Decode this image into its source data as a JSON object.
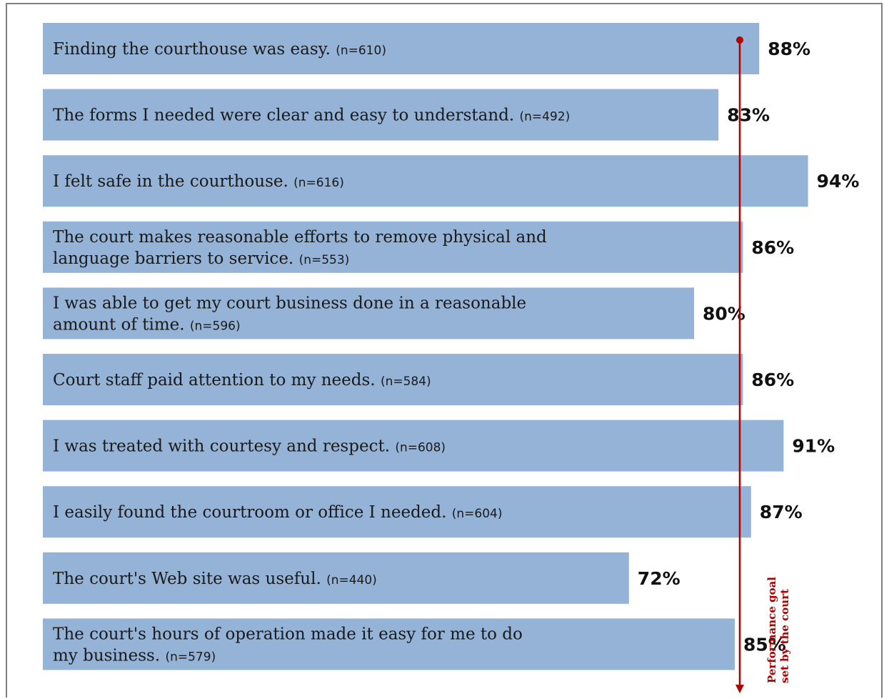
{
  "chart_data": {
    "type": "bar",
    "orientation": "horizontal",
    "title": "",
    "xlabel": "",
    "ylabel": "",
    "xlim": [
      0,
      100
    ],
    "categories": [
      {
        "text": "Finding  the courthouse was easy.",
        "n": "(n=610)"
      },
      {
        "text": "The forms I needed were clear and easy to understand.",
        "n": "(n=492)"
      },
      {
        "text": "I felt safe in the courthouse.",
        "n": "(n=616)"
      },
      {
        "text": "The court makes reasonable efforts to remove physical and\nlanguage barriers to service.",
        "n": "(n=553)"
      },
      {
        "text": "I was able to get my court business done in a reasonable\namount of time.",
        "n": "(n=596)"
      },
      {
        "text": "Court staff paid attention to my needs.",
        "n": "(n=584)"
      },
      {
        "text": "I was treated with courtesy and respect.",
        "n": "(n=608)"
      },
      {
        "text": "I easily found the courtroom or office I needed.",
        "n": "(n=604)"
      },
      {
        "text": "The court's Web site was useful.",
        "n": "(n=440)"
      },
      {
        "text": "The court's hours of operation made it easy for me to do\nmy business.",
        "n": "(n=579)"
      }
    ],
    "values": [
      88,
      83,
      94,
      86,
      80,
      86,
      91,
      87,
      72,
      85
    ],
    "value_labels": [
      "88%",
      "83%",
      "94%",
      "86%",
      "80%",
      "86%",
      "91%",
      "87%",
      "72%",
      "85%"
    ],
    "goal_line": {
      "label": "Performance goal set by the court",
      "label_lines": [
        "Performance goal",
        "set by the court"
      ]
    },
    "colors": {
      "bar": "#94b3d6",
      "goal_line": "#b00000"
    }
  }
}
